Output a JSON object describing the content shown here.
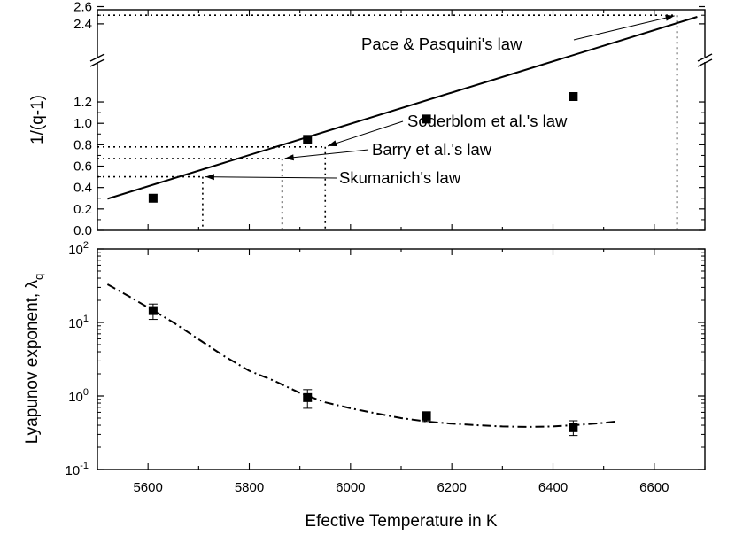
{
  "chart_data": [
    {
      "type": "scatter",
      "panel": "top",
      "title": "",
      "xlabel": "",
      "ylabel": "1/(q-1)",
      "axis_break": true,
      "y_lower_range": [
        0.0,
        1.3
      ],
      "y_upper_range": [
        2.36,
        2.6
      ],
      "y_ticks_lower": [
        0.0,
        0.2,
        0.4,
        0.6,
        0.8,
        1.0,
        1.2
      ],
      "y_tick_labels_lower": [
        "0.0",
        "0.2",
        "0.4",
        "0.6",
        "0.8",
        "1.0",
        "1.2"
      ],
      "y_ticks_upper": [
        2.4,
        2.6
      ],
      "y_tick_labels_upper": [
        "2.4",
        "2.6"
      ],
      "xlim": [
        5500,
        6700
      ],
      "points": [
        {
          "x": 5610,
          "y": 0.3
        },
        {
          "x": 5915,
          "y": 0.85
        },
        {
          "x": 6150,
          "y": 1.04
        },
        {
          "x": 6440,
          "y": 1.25
        }
      ],
      "fit_line": {
        "x1": 5520,
        "x2": 6685,
        "y_at_x1": 0.295,
        "slope_per_K": 0.00116
      },
      "laws": [
        {
          "label": "Pace & Pasquini's law",
          "x": 6645,
          "y": 2.5
        },
        {
          "label": "Soderblom et al.'s law",
          "x": 5950,
          "y": 0.78
        },
        {
          "label": "Barry et al.'s law",
          "x": 5865,
          "y": 0.67
        },
        {
          "label": "Skumanich's law",
          "x": 5708,
          "y": 0.5
        }
      ]
    },
    {
      "type": "scatter",
      "panel": "bottom",
      "title": "",
      "xlabel": "Efective Temperature in K",
      "ylabel": "Lyapunov exponent, λ",
      "ylabel_subscript": "q",
      "yscale": "log",
      "ylim": [
        0.1,
        100
      ],
      "y_tick_base": "10",
      "y_tick_exponents": [
        "-1",
        "0",
        "1",
        "2"
      ],
      "xlim": [
        5500,
        6700
      ],
      "x_ticks": [
        5600,
        5800,
        6000,
        6200,
        6400,
        6600
      ],
      "x_tick_labels": [
        "5600",
        "5800",
        "6000",
        "6200",
        "6400",
        "6600"
      ],
      "points": [
        {
          "x": 5610,
          "y": 14.5,
          "err_low": 11.0,
          "err_high": 17.8
        },
        {
          "x": 5915,
          "y": 0.95,
          "err_low": 0.68,
          "err_high": 1.22
        },
        {
          "x": 6150,
          "y": 0.53,
          "err_low": 0.45,
          "err_high": 0.61
        },
        {
          "x": 6440,
          "y": 0.37,
          "err_low": 0.29,
          "err_high": 0.46
        }
      ],
      "fit_curve": [
        [
          5520,
          33
        ],
        [
          5560,
          23.2
        ],
        [
          5600,
          16.0
        ],
        [
          5650,
          10.0
        ],
        [
          5700,
          5.9
        ],
        [
          5750,
          3.5
        ],
        [
          5800,
          2.2
        ],
        [
          5850,
          1.6
        ],
        [
          5900,
          1.1
        ],
        [
          5950,
          0.82
        ],
        [
          6000,
          0.68
        ],
        [
          6050,
          0.58
        ],
        [
          6100,
          0.5
        ],
        [
          6150,
          0.45
        ],
        [
          6200,
          0.42
        ],
        [
          6250,
          0.4
        ],
        [
          6300,
          0.385
        ],
        [
          6350,
          0.38
        ],
        [
          6400,
          0.385
        ],
        [
          6450,
          0.405
        ],
        [
          6500,
          0.43
        ],
        [
          6525,
          0.45
        ]
      ]
    }
  ]
}
